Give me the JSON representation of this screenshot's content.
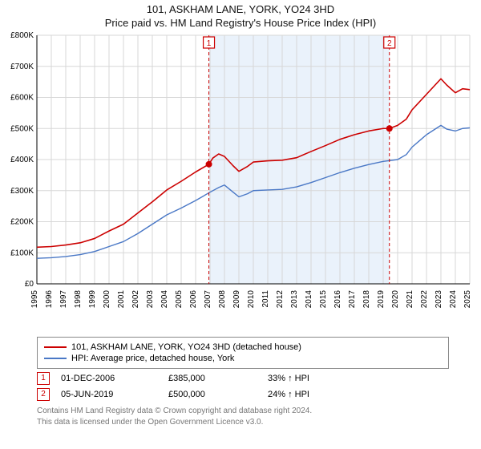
{
  "title": "101, ASKHAM LANE, YORK, YO24 3HD",
  "subtitle": "Price paid vs. HM Land Registry's House Price Index (HPI)",
  "chart": {
    "type": "line",
    "x_years": [
      1995,
      1996,
      1997,
      1998,
      1999,
      2000,
      2001,
      2002,
      2003,
      2004,
      2005,
      2006,
      2007,
      2008,
      2009,
      2010,
      2011,
      2012,
      2013,
      2014,
      2015,
      2016,
      2017,
      2018,
      2019,
      2020,
      2021,
      2022,
      2023,
      2024,
      2025
    ],
    "ylim": [
      0,
      800000
    ],
    "ytick_step": 100000,
    "ytick_labels": [
      "£0",
      "£100K",
      "£200K",
      "£300K",
      "£400K",
      "£500K",
      "£600K",
      "£700K",
      "£800K"
    ],
    "background_color": "#ffffff",
    "grid_color": "#d7d7d7",
    "axis_color": "#000000",
    "axis_fontsize": 10,
    "shaded_region": {
      "x_start": 2006.92,
      "x_end": 2019.43,
      "fill": "#eaf2fb"
    },
    "series": [
      {
        "name": "101, ASKHAM LANE, YORK, YO24 3HD (detached house)",
        "color": "#cc0000",
        "width": 1.6,
        "data": [
          [
            1995,
            118000
          ],
          [
            1996,
            120000
          ],
          [
            1997,
            125000
          ],
          [
            1998,
            132000
          ],
          [
            1999,
            146000
          ],
          [
            2000,
            170000
          ],
          [
            2001,
            192000
          ],
          [
            2002,
            228000
          ],
          [
            2003,
            264000
          ],
          [
            2004,
            302000
          ],
          [
            2005,
            330000
          ],
          [
            2006,
            360000
          ],
          [
            2006.92,
            385000
          ],
          [
            2007.2,
            405000
          ],
          [
            2007.6,
            418000
          ],
          [
            2008,
            410000
          ],
          [
            2008.6,
            380000
          ],
          [
            2009,
            362000
          ],
          [
            2009.6,
            378000
          ],
          [
            2010,
            392000
          ],
          [
            2011,
            396000
          ],
          [
            2012,
            398000
          ],
          [
            2013,
            406000
          ],
          [
            2014,
            426000
          ],
          [
            2015,
            445000
          ],
          [
            2016,
            465000
          ],
          [
            2017,
            480000
          ],
          [
            2018,
            492000
          ],
          [
            2019,
            500000
          ],
          [
            2019.43,
            500000
          ],
          [
            2020,
            510000
          ],
          [
            2020.6,
            530000
          ],
          [
            2021,
            560000
          ],
          [
            2021.6,
            590000
          ],
          [
            2022,
            610000
          ],
          [
            2022.6,
            640000
          ],
          [
            2023,
            660000
          ],
          [
            2023.4,
            640000
          ],
          [
            2024,
            615000
          ],
          [
            2024.5,
            628000
          ],
          [
            2025,
            625000
          ]
        ]
      },
      {
        "name": "HPI: Average price, detached house, York",
        "color": "#4a78c6",
        "width": 1.4,
        "data": [
          [
            1995,
            82000
          ],
          [
            1996,
            84000
          ],
          [
            1997,
            88000
          ],
          [
            1998,
            94000
          ],
          [
            1999,
            104000
          ],
          [
            2000,
            120000
          ],
          [
            2001,
            136000
          ],
          [
            2002,
            162000
          ],
          [
            2003,
            192000
          ],
          [
            2004,
            222000
          ],
          [
            2005,
            244000
          ],
          [
            2006,
            268000
          ],
          [
            2007,
            295000
          ],
          [
            2007.6,
            310000
          ],
          [
            2008,
            318000
          ],
          [
            2008.6,
            295000
          ],
          [
            2009,
            280000
          ],
          [
            2009.6,
            290000
          ],
          [
            2010,
            300000
          ],
          [
            2011,
            302000
          ],
          [
            2012,
            304000
          ],
          [
            2013,
            312000
          ],
          [
            2014,
            326000
          ],
          [
            2015,
            342000
          ],
          [
            2016,
            358000
          ],
          [
            2017,
            372000
          ],
          [
            2018,
            384000
          ],
          [
            2019,
            394000
          ],
          [
            2020,
            400000
          ],
          [
            2020.6,
            416000
          ],
          [
            2021,
            440000
          ],
          [
            2021.6,
            464000
          ],
          [
            2022,
            480000
          ],
          [
            2022.6,
            498000
          ],
          [
            2023,
            510000
          ],
          [
            2023.4,
            498000
          ],
          [
            2024,
            492000
          ],
          [
            2024.5,
            500000
          ],
          [
            2025,
            502000
          ]
        ]
      }
    ],
    "sale_markers": [
      {
        "label": "1",
        "x": 2006.92,
        "y": 385000,
        "line_color": "#cc0000",
        "dash": "4,3",
        "label_y_top": true
      },
      {
        "label": "2",
        "x": 2019.43,
        "y": 500000,
        "line_color": "#cc0000",
        "dash": "4,3",
        "label_y_top": true
      }
    ],
    "dot_color": "#cc0000",
    "dot_radius": 4
  },
  "legend": {
    "items": [
      {
        "color": "#cc0000",
        "label": "101, ASKHAM LANE, YORK, YO24 3HD (detached house)"
      },
      {
        "color": "#4a78c6",
        "label": "HPI: Average price, detached house, York"
      }
    ]
  },
  "sales": [
    {
      "marker": "1",
      "date": "01-DEC-2006",
      "price": "£385,000",
      "pct": "33% ↑ HPI"
    },
    {
      "marker": "2",
      "date": "05-JUN-2019",
      "price": "£500,000",
      "pct": "24% ↑ HPI"
    }
  ],
  "footer": {
    "line1": "Contains HM Land Registry data © Crown copyright and database right 2024.",
    "line2": "This data is licensed under the Open Government Licence v3.0."
  }
}
